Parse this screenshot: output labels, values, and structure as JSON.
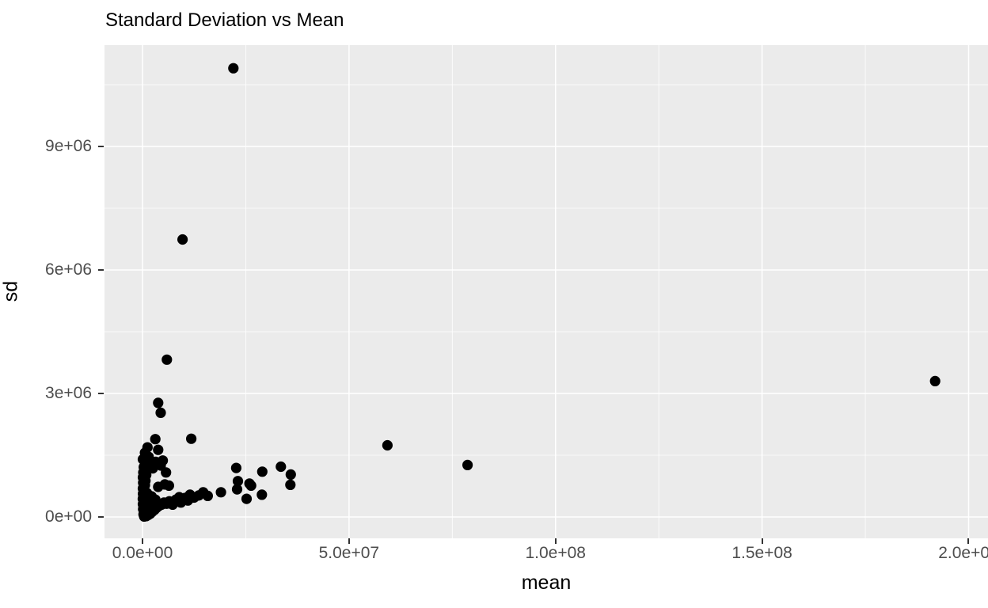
{
  "chart_data": {
    "type": "scatter",
    "title": "Standard Deviation vs Mean",
    "xlabel": "mean",
    "ylabel": "sd",
    "legend": "none",
    "grid": "on",
    "panel_bg": "#EBEBEB",
    "grid_color": "#FFFFFF",
    "tick_text_color": "#4D4D4D",
    "tick_mark_color": "#333333",
    "point_color": "#000000",
    "point_radius": 6.6,
    "xlim": [
      -9200000,
      204700000
    ],
    "ylim": [
      -520000,
      11462000
    ],
    "x_ticks": [
      {
        "value": 0,
        "label": "0.0e+00"
      },
      {
        "value": 50000000,
        "label": "5.0e+07"
      },
      {
        "value": 100000000,
        "label": "1.0e+08"
      },
      {
        "value": 150000000,
        "label": "1.5e+08"
      },
      {
        "value": 200000000,
        "label": "2.0e+08"
      }
    ],
    "y_ticks": [
      {
        "value": 0,
        "label": "0e+00"
      },
      {
        "value": 3000000,
        "label": "3e+06"
      },
      {
        "value": 6000000,
        "label": "6e+06"
      },
      {
        "value": 9000000,
        "label": "9e+06"
      }
    ],
    "x_minor": [
      25000000,
      75000000,
      125000000,
      175000000
    ],
    "y_minor": [
      1500000,
      4500000,
      7500000,
      10500000
    ],
    "points": [
      [
        22000000,
        10900000
      ],
      [
        9700000,
        6740000
      ],
      [
        5900000,
        3820000
      ],
      [
        191900000,
        3300000
      ],
      [
        3800000,
        2770000
      ],
      [
        4400000,
        2530000
      ],
      [
        3100000,
        1890000
      ],
      [
        11800000,
        1900000
      ],
      [
        59300000,
        1740000
      ],
      [
        78700000,
        1260000
      ],
      [
        3800000,
        1630000
      ],
      [
        4900000,
        1370000
      ],
      [
        3200000,
        1340000
      ],
      [
        1900000,
        1270000
      ],
      [
        2500000,
        1180000
      ],
      [
        4400000,
        1250000
      ],
      [
        1000000,
        1150000
      ],
      [
        400000,
        1050000
      ],
      [
        5700000,
        1080000
      ],
      [
        6400000,
        760000
      ],
      [
        5400000,
        790000
      ],
      [
        3800000,
        730000
      ],
      [
        22700000,
        1190000
      ],
      [
        29000000,
        1100000
      ],
      [
        33500000,
        1220000
      ],
      [
        35900000,
        1030000
      ],
      [
        35800000,
        780000
      ],
      [
        23100000,
        870000
      ],
      [
        22900000,
        670000
      ],
      [
        25900000,
        810000
      ],
      [
        26300000,
        760000
      ],
      [
        25200000,
        440000
      ],
      [
        28900000,
        540000
      ],
      [
        19000000,
        600000
      ],
      [
        15800000,
        510000
      ],
      [
        14700000,
        600000
      ],
      [
        11500000,
        540000
      ],
      [
        9300000,
        350000
      ],
      [
        1200000,
        1690000
      ],
      [
        600000,
        1560000
      ],
      [
        1500000,
        1460000
      ],
      [
        100000,
        1400000
      ],
      [
        1000000,
        1310000
      ],
      [
        300000,
        1210000
      ],
      [
        800000,
        1170000
      ],
      [
        200000,
        1080000
      ],
      [
        900000,
        1020000
      ],
      [
        100000,
        960000
      ],
      [
        700000,
        880000
      ],
      [
        150000,
        830000
      ],
      [
        600000,
        770000
      ],
      [
        100000,
        690000
      ],
      [
        500000,
        630000
      ],
      [
        120000,
        560000
      ],
      [
        550000,
        500000
      ],
      [
        80000,
        440000
      ],
      [
        400000,
        380000
      ],
      [
        100000,
        310000
      ],
      [
        500000,
        250000
      ],
      [
        150000,
        190000
      ],
      [
        600000,
        130000
      ],
      [
        250000,
        60000
      ],
      [
        400000,
        10000
      ],
      [
        900000,
        20000
      ],
      [
        1400000,
        50000
      ],
      [
        1900000,
        80000
      ],
      [
        1200000,
        150000
      ],
      [
        2300000,
        120000
      ],
      [
        2900000,
        170000
      ],
      [
        3400000,
        220000
      ],
      [
        2000000,
        280000
      ],
      [
        2600000,
        330000
      ],
      [
        4000000,
        270000
      ],
      [
        4600000,
        300000
      ],
      [
        5200000,
        350000
      ],
      [
        3100000,
        420000
      ],
      [
        5800000,
        320000
      ],
      [
        6500000,
        380000
      ],
      [
        7300000,
        300000
      ],
      [
        8100000,
        420000
      ],
      [
        8900000,
        480000
      ],
      [
        2200000,
        500000
      ],
      [
        1600000,
        440000
      ],
      [
        1100000,
        580000
      ],
      [
        10300000,
        460000
      ],
      [
        11000000,
        400000
      ],
      [
        12500000,
        470000
      ],
      [
        13600000,
        520000
      ]
    ]
  }
}
